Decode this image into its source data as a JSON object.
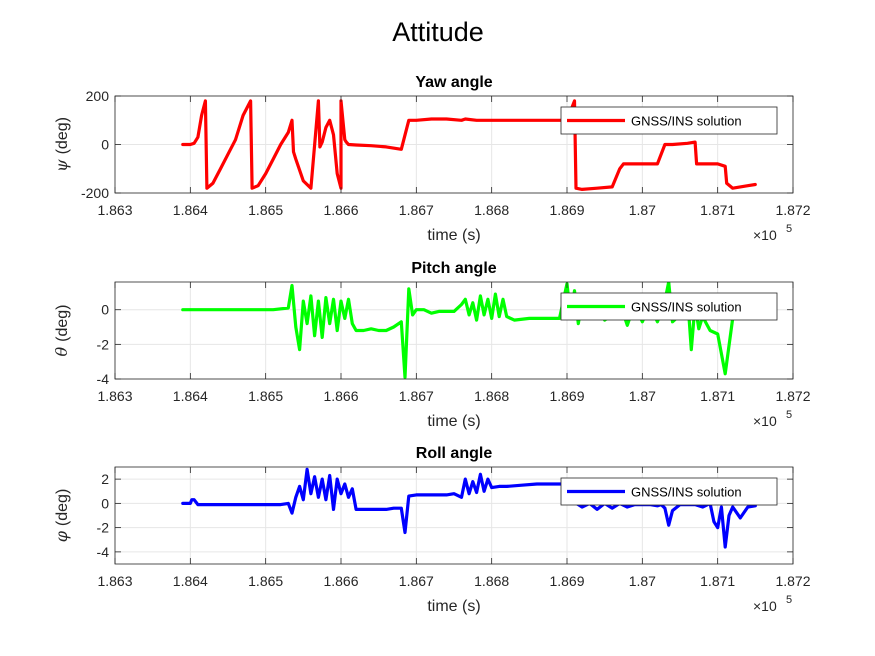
{
  "figure": {
    "title": "Attitude"
  },
  "chart_data": [
    {
      "type": "line",
      "title": "Yaw angle",
      "xlabel": "time (s)",
      "ylabel_symbol": "ψ",
      "ylabel_text": "(deg)",
      "x_exponent_base": "×10",
      "x_exponent_power": "5",
      "xlim": [
        1.863,
        1.872
      ],
      "ylim": [
        -200,
        200
      ],
      "xticks": [
        1.863,
        1.864,
        1.865,
        1.866,
        1.867,
        1.868,
        1.869,
        1.87,
        1.871,
        1.872
      ],
      "xtick_labels": [
        "1.863",
        "1.864",
        "1.865",
        "1.866",
        "1.867",
        "1.868",
        "1.869",
        "1.87",
        "1.871",
        "1.872"
      ],
      "yticks": [
        -200,
        0,
        200
      ],
      "ytick_labels": [
        "-200",
        "0",
        "200"
      ],
      "grid": true,
      "legend_location": "top-right",
      "series": [
        {
          "name": "GNSS/INS solution",
          "color": "#ff0000",
          "x": [
            1.8639,
            1.864,
            1.86405,
            1.8641,
            1.86415,
            1.8642,
            1.86422,
            1.8643,
            1.8644,
            1.8645,
            1.8646,
            1.8647,
            1.8648,
            1.86482,
            1.8649,
            1.865,
            1.8651,
            1.8652,
            1.8653,
            1.86535,
            1.86537,
            1.8654,
            1.8655,
            1.8656,
            1.8657,
            1.86572,
            1.86575,
            1.8658,
            1.86585,
            1.8659,
            1.86595,
            1.866,
            1.866,
            1.86605,
            1.86607,
            1.8661,
            1.8662,
            1.8664,
            1.8666,
            1.8668,
            1.8669,
            1.867,
            1.8672,
            1.8674,
            1.8676,
            1.86765,
            1.8678,
            1.868,
            1.8682,
            1.8684,
            1.8686,
            1.8688,
            1.869,
            1.8691,
            1.86912,
            1.8692,
            1.8694,
            1.8696,
            1.8697,
            1.86975,
            1.8698,
            1.87,
            1.8702,
            1.8703,
            1.87032,
            1.8704,
            1.8706,
            1.8707,
            1.87072,
            1.8708,
            1.871,
            1.8711,
            1.87112,
            1.8712,
            1.8714,
            1.8715
          ],
          "y": [
            0,
            0,
            5,
            30,
            120,
            180,
            -180,
            -160,
            -100,
            -40,
            20,
            120,
            180,
            -180,
            -170,
            -120,
            -60,
            0,
            50,
            100,
            -30,
            -60,
            -150,
            -180,
            180,
            -10,
            10,
            70,
            100,
            40,
            -120,
            -180,
            180,
            20,
            10,
            0,
            -2,
            -5,
            -10,
            -20,
            100,
            100,
            105,
            105,
            100,
            105,
            100,
            100,
            100,
            100,
            100,
            100,
            100,
            180,
            -180,
            -185,
            -180,
            -175,
            -100,
            -80,
            -80,
            -80,
            -80,
            0,
            0,
            0,
            5,
            10,
            -80,
            -80,
            -80,
            -90,
            -160,
            -180,
            -170,
            -165
          ]
        }
      ]
    },
    {
      "type": "line",
      "title": "Pitch angle",
      "xlabel": "time (s)",
      "ylabel_symbol": "θ",
      "ylabel_text": "(deg)",
      "x_exponent_base": "×10",
      "x_exponent_power": "5",
      "xlim": [
        1.863,
        1.872
      ],
      "ylim": [
        -4,
        1.6
      ],
      "xticks": [
        1.863,
        1.864,
        1.865,
        1.866,
        1.867,
        1.868,
        1.869,
        1.87,
        1.871,
        1.872
      ],
      "xtick_labels": [
        "1.863",
        "1.864",
        "1.865",
        "1.866",
        "1.867",
        "1.868",
        "1.869",
        "1.87",
        "1.871",
        "1.872"
      ],
      "yticks": [
        -4,
        -2,
        0
      ],
      "ytick_labels": [
        "-4",
        "-2",
        "0"
      ],
      "grid": true,
      "legend_location": "top-right",
      "series": [
        {
          "name": "GNSS/INS solution",
          "color": "#00ff00",
          "x": [
            1.8639,
            1.8641,
            1.8643,
            1.8645,
            1.8647,
            1.8649,
            1.8651,
            1.8653,
            1.86535,
            1.8654,
            1.86545,
            1.8655,
            1.86555,
            1.8656,
            1.86565,
            1.8657,
            1.86575,
            1.8658,
            1.86585,
            1.8659,
            1.86595,
            1.866,
            1.86605,
            1.8661,
            1.86615,
            1.8662,
            1.8663,
            1.8664,
            1.8665,
            1.8666,
            1.8667,
            1.8668,
            1.86685,
            1.8669,
            1.86695,
            1.867,
            1.8671,
            1.8672,
            1.8673,
            1.8674,
            1.8675,
            1.8676,
            1.86765,
            1.8677,
            1.86775,
            1.8678,
            1.86785,
            1.8679,
            1.86795,
            1.868,
            1.86805,
            1.8681,
            1.86815,
            1.8682,
            1.8683,
            1.8685,
            1.8687,
            1.8689,
            1.869,
            1.86905,
            1.8691,
            1.86915,
            1.8692,
            1.8693,
            1.8694,
            1.8695,
            1.8696,
            1.8697,
            1.8698,
            1.8699,
            1.87,
            1.8701,
            1.8702,
            1.8703,
            1.87035,
            1.8704,
            1.8705,
            1.8706,
            1.87065,
            1.8707,
            1.87075,
            1.8708,
            1.8709,
            1.871,
            1.8711,
            1.8712,
            1.8713,
            1.8714,
            1.8715
          ],
          "y": [
            0,
            0,
            0,
            0,
            0,
            0,
            0,
            0.1,
            1.4,
            -1.0,
            -2.3,
            0.5,
            -0.8,
            0.8,
            -1.5,
            0.5,
            -1.6,
            0.7,
            -0.8,
            0.6,
            -1.2,
            0.5,
            -0.5,
            0.6,
            -0.8,
            -1.2,
            -1.2,
            -1.1,
            -1.2,
            -1.2,
            -1.0,
            -0.7,
            -3.9,
            1.2,
            -0.3,
            0.0,
            0.0,
            -0.2,
            -0.1,
            -0.1,
            -0.1,
            0.3,
            0.6,
            -0.3,
            0.4,
            -0.6,
            0.8,
            -0.3,
            0.6,
            -0.5,
            0.9,
            -0.4,
            0.6,
            -0.4,
            -0.6,
            -0.5,
            -0.5,
            -0.5,
            1.5,
            -0.5,
            1.1,
            -0.8,
            0.5,
            -0.4,
            0.5,
            -0.6,
            -0.3,
            0.4,
            -0.9,
            0.4,
            -0.7,
            0.3,
            -0.7,
            0.5,
            1.6,
            -0.7,
            -0.3,
            0.8,
            -2.3,
            0.3,
            -1.1,
            -0.4,
            -1.2,
            -1.4,
            -3.7,
            -0.5,
            0.4,
            -0.5,
            -0.4
          ]
        }
      ]
    },
    {
      "type": "line",
      "title": "Roll angle",
      "xlabel": "time (s)",
      "ylabel_symbol": "φ",
      "ylabel_text": "(deg)",
      "x_exponent_base": "×10",
      "x_exponent_power": "5",
      "xlim": [
        1.863,
        1.872
      ],
      "ylim": [
        -5,
        3
      ],
      "xticks": [
        1.863,
        1.864,
        1.865,
        1.866,
        1.867,
        1.868,
        1.869,
        1.87,
        1.871,
        1.872
      ],
      "xtick_labels": [
        "1.863",
        "1.864",
        "1.865",
        "1.866",
        "1.867",
        "1.868",
        "1.869",
        "1.87",
        "1.871",
        "1.872"
      ],
      "yticks": [
        -4,
        -2,
        0,
        2
      ],
      "ytick_labels": [
        "-4",
        "-2",
        "0",
        "2"
      ],
      "grid": true,
      "legend_location": "top-right",
      "series": [
        {
          "name": "GNSS/INS solution",
          "color": "#0000ff",
          "x": [
            1.8639,
            1.864,
            1.86402,
            1.86405,
            1.8641,
            1.8643,
            1.8645,
            1.8647,
            1.8649,
            1.8651,
            1.8652,
            1.8653,
            1.86535,
            1.8654,
            1.86545,
            1.8655,
            1.86555,
            1.8656,
            1.86565,
            1.8657,
            1.86575,
            1.8658,
            1.86585,
            1.8659,
            1.86595,
            1.866,
            1.86605,
            1.8661,
            1.86615,
            1.8662,
            1.8663,
            1.8664,
            1.8665,
            1.8666,
            1.8667,
            1.8668,
            1.86685,
            1.8669,
            1.867,
            1.8671,
            1.8672,
            1.8673,
            1.8674,
            1.8675,
            1.8676,
            1.86765,
            1.8677,
            1.86775,
            1.8678,
            1.86785,
            1.8679,
            1.86795,
            1.868,
            1.8681,
            1.8682,
            1.8684,
            1.8686,
            1.8688,
            1.869,
            1.8691,
            1.8692,
            1.8693,
            1.8694,
            1.8695,
            1.8696,
            1.8697,
            1.8698,
            1.8699,
            1.87,
            1.8701,
            1.8702,
            1.87025,
            1.8703,
            1.87035,
            1.8704,
            1.8705,
            1.8706,
            1.8707,
            1.8708,
            1.8709,
            1.87095,
            1.871,
            1.87105,
            1.8711,
            1.87115,
            1.8712,
            1.8713,
            1.8714,
            1.8715
          ],
          "y": [
            0,
            0,
            0.3,
            0.3,
            -0.1,
            -0.1,
            -0.1,
            -0.1,
            -0.1,
            -0.1,
            -0.1,
            0.0,
            -0.8,
            0.5,
            1.4,
            0.3,
            2.8,
            0.8,
            2.2,
            0.5,
            2.0,
            0.3,
            2.3,
            -0.5,
            2.0,
            0.8,
            1.6,
            0.5,
            1.2,
            -0.5,
            -0.5,
            -0.5,
            -0.5,
            -0.5,
            -0.4,
            -0.4,
            -2.4,
            0.6,
            0.7,
            0.7,
            0.7,
            0.7,
            0.7,
            0.8,
            0.5,
            2.0,
            0.8,
            1.8,
            0.9,
            2.4,
            1.0,
            2.0,
            1.3,
            1.4,
            1.4,
            1.5,
            1.6,
            1.6,
            1.6,
            0.1,
            -0.3,
            0.0,
            -0.5,
            0.0,
            -0.4,
            0.0,
            -0.3,
            -0.1,
            -0.1,
            -0.1,
            -0.2,
            -0.1,
            -0.4,
            -1.8,
            -0.6,
            -0.1,
            -0.1,
            -0.1,
            -0.3,
            0.0,
            -1.5,
            -2.0,
            -0.3,
            -3.6,
            -1.0,
            -0.3,
            -1.2,
            -0.3,
            -0.2
          ]
        }
      ]
    }
  ]
}
